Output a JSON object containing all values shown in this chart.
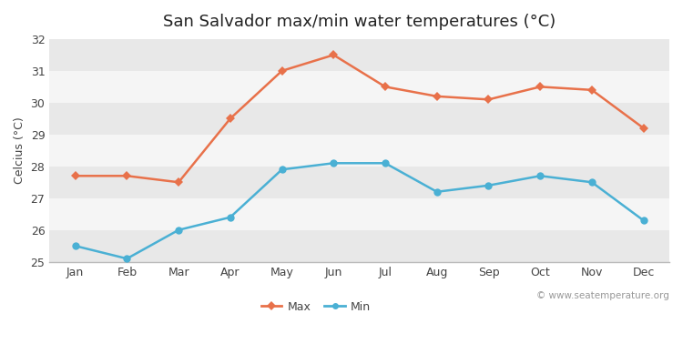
{
  "title": "San Salvador max/min water temperatures (°C)",
  "ylabel": "Celcius (°C)",
  "months": [
    "Jan",
    "Feb",
    "Mar",
    "Apr",
    "May",
    "Jun",
    "Jul",
    "Aug",
    "Sep",
    "Oct",
    "Nov",
    "Dec"
  ],
  "max_temps": [
    27.7,
    27.7,
    27.5,
    29.5,
    31.0,
    31.5,
    30.5,
    30.2,
    30.1,
    30.5,
    30.4,
    29.2
  ],
  "min_temps": [
    25.5,
    25.1,
    26.0,
    26.4,
    27.9,
    28.1,
    28.1,
    27.2,
    27.4,
    27.7,
    27.5,
    26.3
  ],
  "max_color": "#e8714a",
  "min_color": "#4ab0d4",
  "ylim": [
    25.0,
    32.0
  ],
  "yticks": [
    25,
    26,
    27,
    28,
    29,
    30,
    31,
    32
  ],
  "fig_bg_color": "#ffffff",
  "band_light": "#f5f5f5",
  "band_dark": "#e8e8e8",
  "bottom_spine_color": "#bbbbbb",
  "watermark": "© www.seatemperature.org",
  "title_fontsize": 13,
  "label_fontsize": 9,
  "tick_fontsize": 9,
  "watermark_fontsize": 7.5,
  "legend_labels": [
    "Max",
    "Min"
  ]
}
